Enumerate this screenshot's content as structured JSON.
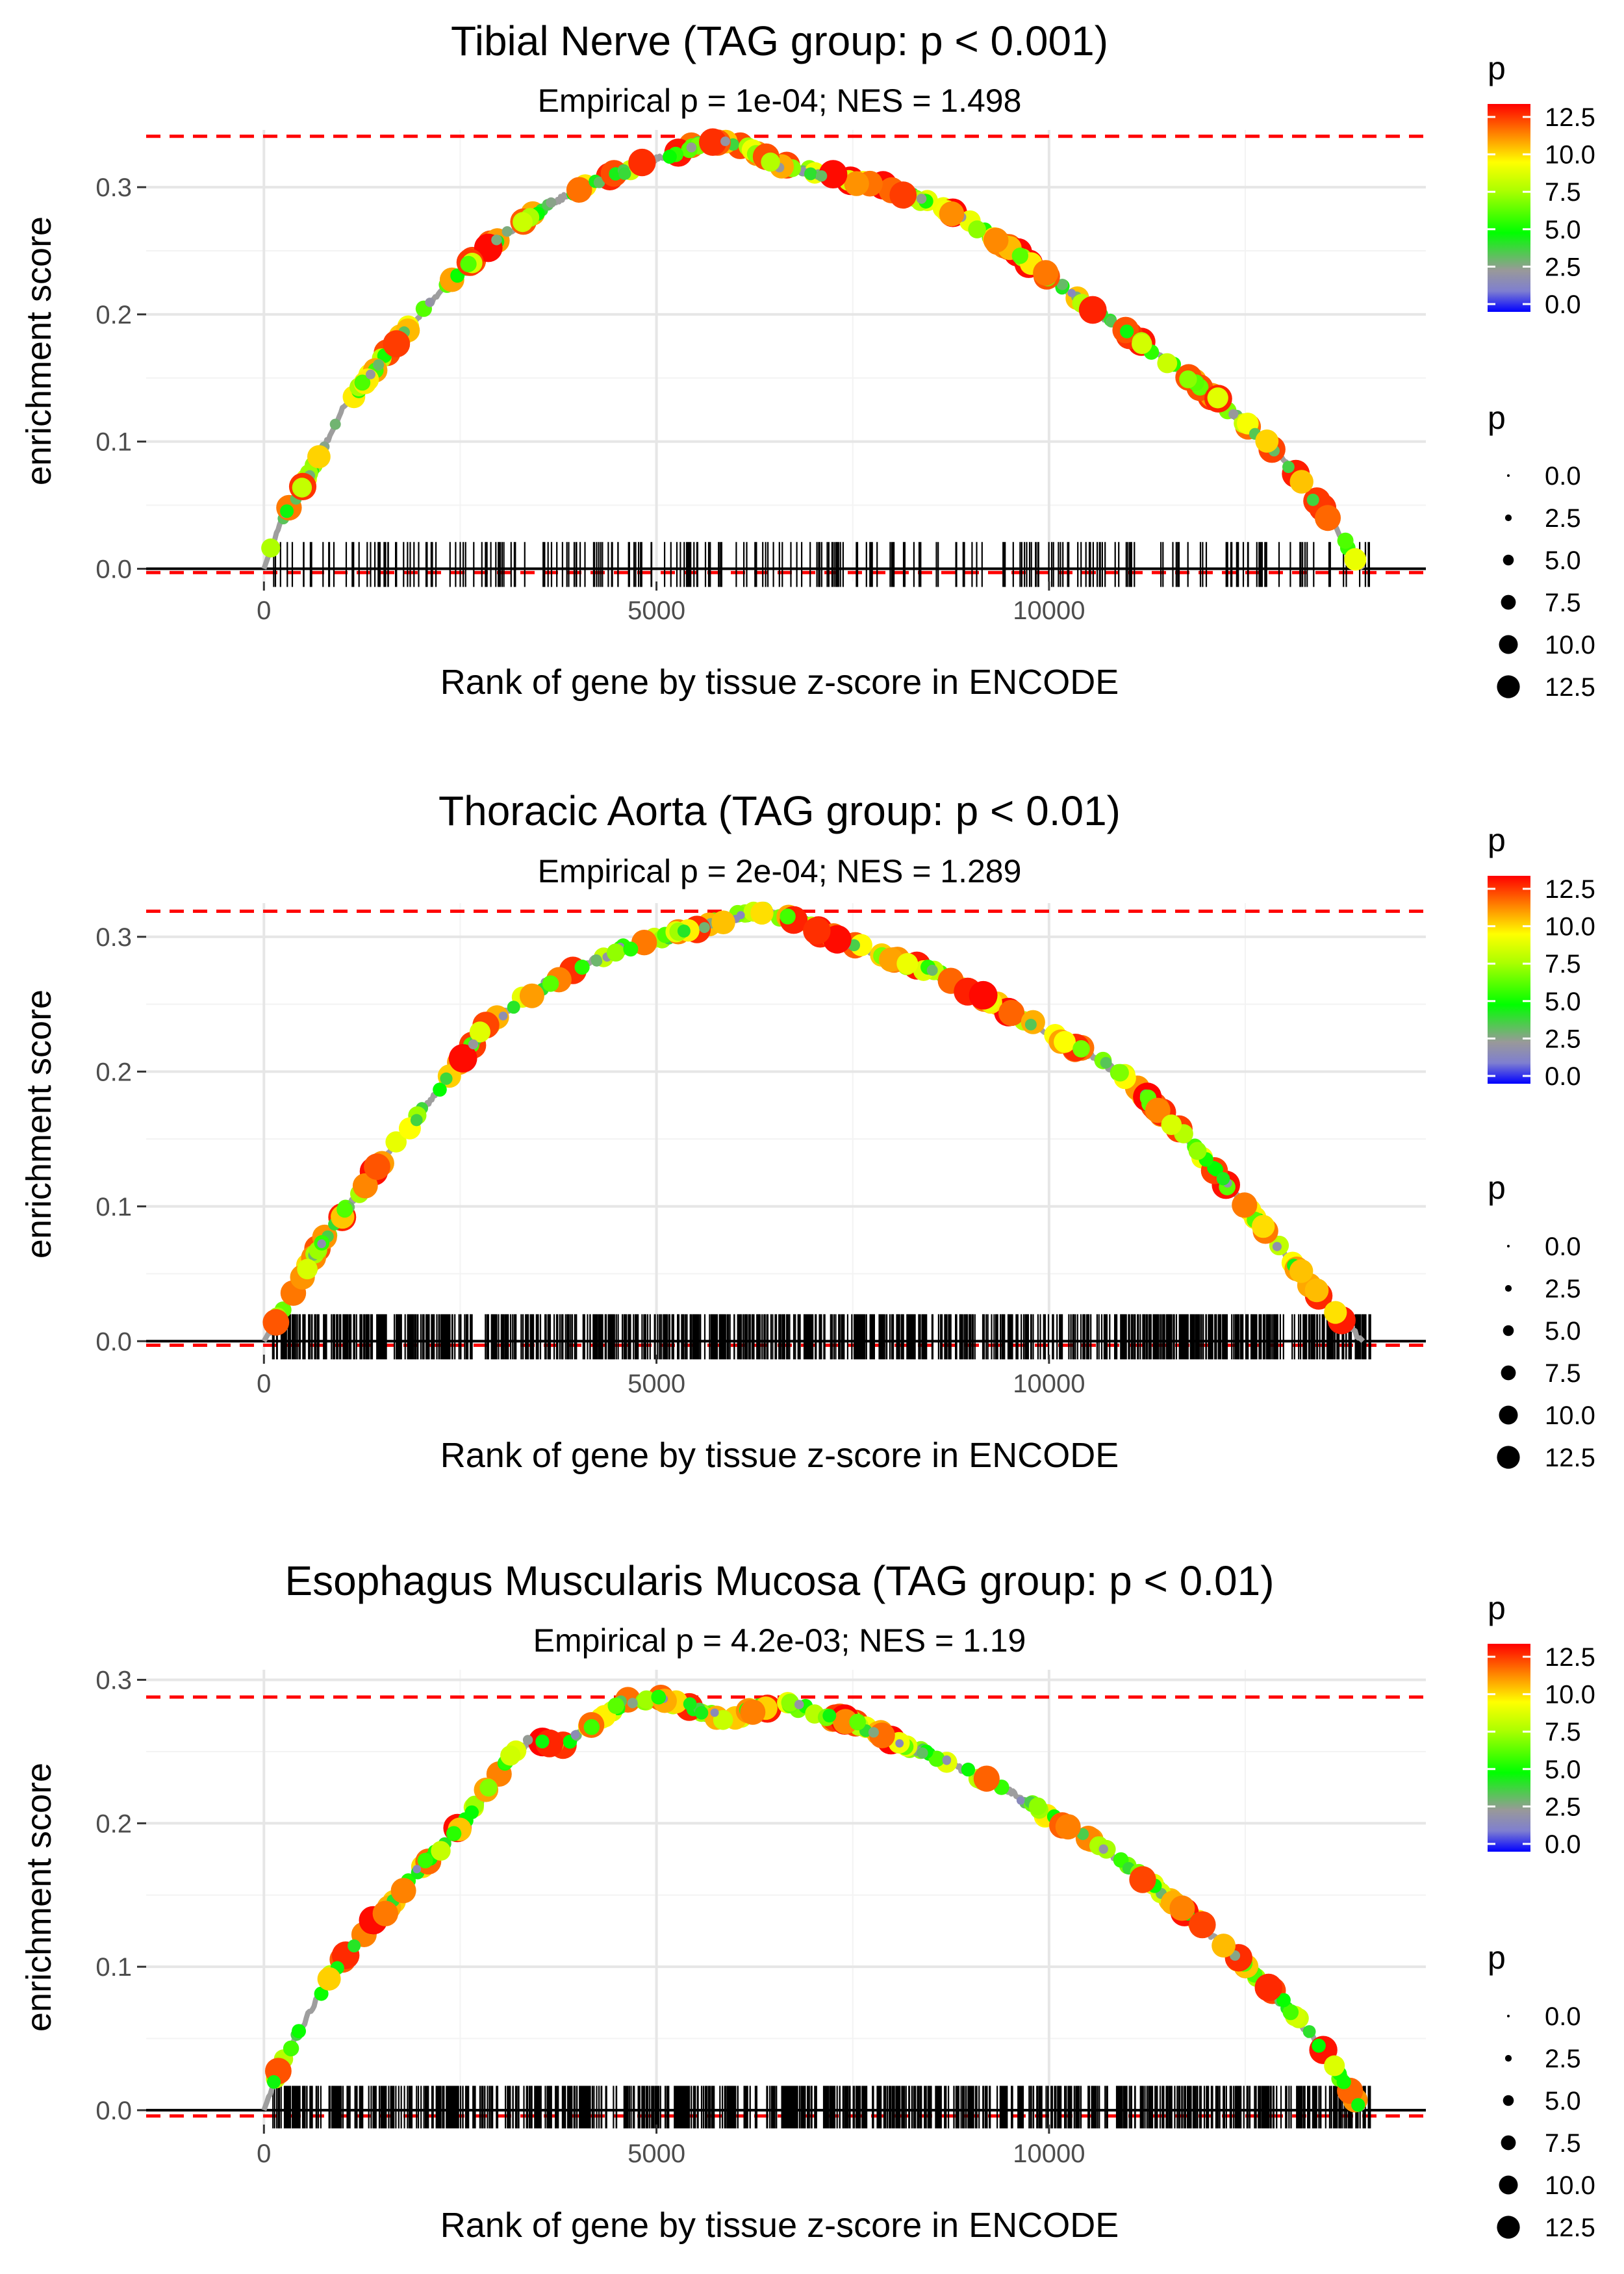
{
  "chart_data": [
    {
      "type": "line",
      "title": "Tibial Nerve (TAG group: p < 0.001)",
      "subtitle": "Empirical p = 1e-04; NES = 1.498",
      "xlabel": "Rank of gene by tissue z-score in ENCODE",
      "ylabel": "enrichment score",
      "xlim": [
        -1500,
        14800
      ],
      "ylim": [
        -0.01,
        0.345
      ],
      "xticks": [
        0,
        5000,
        10000
      ],
      "xtick_labels": [
        "0",
        "5000",
        "10000"
      ],
      "yticks": [
        0.0,
        0.1,
        0.2,
        0.3
      ],
      "ytick_labels": [
        "0.0",
        "0.1",
        "0.2",
        "0.3"
      ],
      "max_es": 0.34,
      "min_es": -0.003,
      "n_genes": 14100,
      "n_hits": 260,
      "rug_height": 0.021,
      "curve": {
        "x": [
          0,
          200,
          500,
          800,
          1000,
          1300,
          1600,
          2000,
          2400,
          2800,
          3200,
          3600,
          4000,
          4500,
          5000,
          5500,
          5800,
          6200,
          6500,
          7000,
          7500,
          8000,
          8500,
          9000,
          9500,
          10000,
          10500,
          11000,
          11500,
          12000,
          12500,
          13000,
          13500,
          14000
        ],
        "y": [
          0.0,
          0.035,
          0.065,
          0.1,
          0.125,
          0.148,
          0.172,
          0.2,
          0.228,
          0.25,
          0.268,
          0.285,
          0.298,
          0.31,
          0.322,
          0.333,
          0.337,
          0.33,
          0.318,
          0.312,
          0.305,
          0.298,
          0.288,
          0.272,
          0.252,
          0.23,
          0.205,
          0.185,
          0.163,
          0.14,
          0.115,
          0.085,
          0.045,
          0.0
        ]
      },
      "legend_p_values": [
        "0.0",
        "2.5",
        "5.0",
        "7.5",
        "10.0",
        "12.5"
      ],
      "legend_title": "p"
    },
    {
      "type": "line",
      "title": "Thoracic Aorta (TAG group: p < 0.01)",
      "subtitle": "Empirical p = 2e-04; NES = 1.289",
      "xlabel": "Rank of gene by tissue z-score in ENCODE",
      "ylabel": "enrichment score",
      "xlim": [
        -1500,
        14800
      ],
      "ylim": [
        -0.01,
        0.325
      ],
      "xticks": [
        0,
        5000,
        10000
      ],
      "xtick_labels": [
        "0",
        "5000",
        "10000"
      ],
      "yticks": [
        0.0,
        0.1,
        0.2,
        0.3
      ],
      "ytick_labels": [
        "0.0",
        "0.1",
        "0.2",
        "0.3"
      ],
      "max_es": 0.319,
      "min_es": -0.003,
      "n_genes": 14100,
      "n_hits": 900,
      "rug_height": 0.02,
      "curve": {
        "x": [
          0,
          200,
          500,
          800,
          1200,
          1600,
          2000,
          2400,
          2800,
          3200,
          3600,
          4000,
          4500,
          5000,
          5500,
          6000,
          6400,
          6800,
          7200,
          7600,
          8000,
          8500,
          9000,
          9500,
          10000,
          10500,
          11000,
          11500,
          12000,
          12500,
          13000,
          13500,
          14000
        ],
        "y": [
          0.0,
          0.02,
          0.05,
          0.078,
          0.11,
          0.14,
          0.17,
          0.2,
          0.232,
          0.25,
          0.265,
          0.278,
          0.29,
          0.298,
          0.307,
          0.315,
          0.319,
          0.312,
          0.3,
          0.292,
          0.283,
          0.275,
          0.26,
          0.245,
          0.228,
          0.213,
          0.195,
          0.165,
          0.135,
          0.1,
          0.065,
          0.03,
          0.0
        ]
      },
      "legend_p_values": [
        "0.0",
        "2.5",
        "5.0",
        "7.5",
        "10.0",
        "12.5"
      ],
      "legend_title": "p"
    },
    {
      "type": "line",
      "title": "Esophagus Muscularis Mucosa (TAG group: p < 0.01)",
      "subtitle": "Empirical p = 4.2e-03; NES = 1.19",
      "xlabel": "Rank of gene by tissue z-score in ENCODE",
      "ylabel": "enrichment score",
      "xlim": [
        -1500,
        14800
      ],
      "ylim": [
        -0.01,
        0.307
      ],
      "xticks": [
        0,
        5000,
        10000
      ],
      "xtick_labels": [
        "0",
        "5000",
        "10000"
      ],
      "yticks": [
        0.0,
        0.1,
        0.2,
        0.3
      ],
      "ytick_labels": [
        "0.0",
        "0.1",
        "0.2",
        "0.3"
      ],
      "max_es": 0.288,
      "min_es": -0.004,
      "n_genes": 14100,
      "n_hits": 900,
      "rug_height": 0.017,
      "curve": {
        "x": [
          0,
          200,
          500,
          800,
          1200,
          1600,
          2000,
          2400,
          2800,
          3100,
          3400,
          3800,
          4200,
          4600,
          5000,
          5500,
          5900,
          6300,
          6700,
          7200,
          7600,
          8000,
          8500,
          9000,
          9500,
          10000,
          10500,
          11000,
          11500,
          12000,
          12500,
          13000,
          13500,
          14000
        ],
        "y": [
          0.0,
          0.03,
          0.06,
          0.09,
          0.12,
          0.142,
          0.17,
          0.19,
          0.22,
          0.245,
          0.258,
          0.253,
          0.27,
          0.285,
          0.288,
          0.28,
          0.272,
          0.28,
          0.283,
          0.275,
          0.268,
          0.258,
          0.248,
          0.235,
          0.222,
          0.205,
          0.19,
          0.17,
          0.15,
          0.125,
          0.1,
          0.075,
          0.04,
          0.0
        ]
      },
      "legend_p_values": [
        "0.0",
        "2.5",
        "5.0",
        "7.5",
        "10.0",
        "12.5"
      ],
      "legend_title": "p"
    }
  ]
}
